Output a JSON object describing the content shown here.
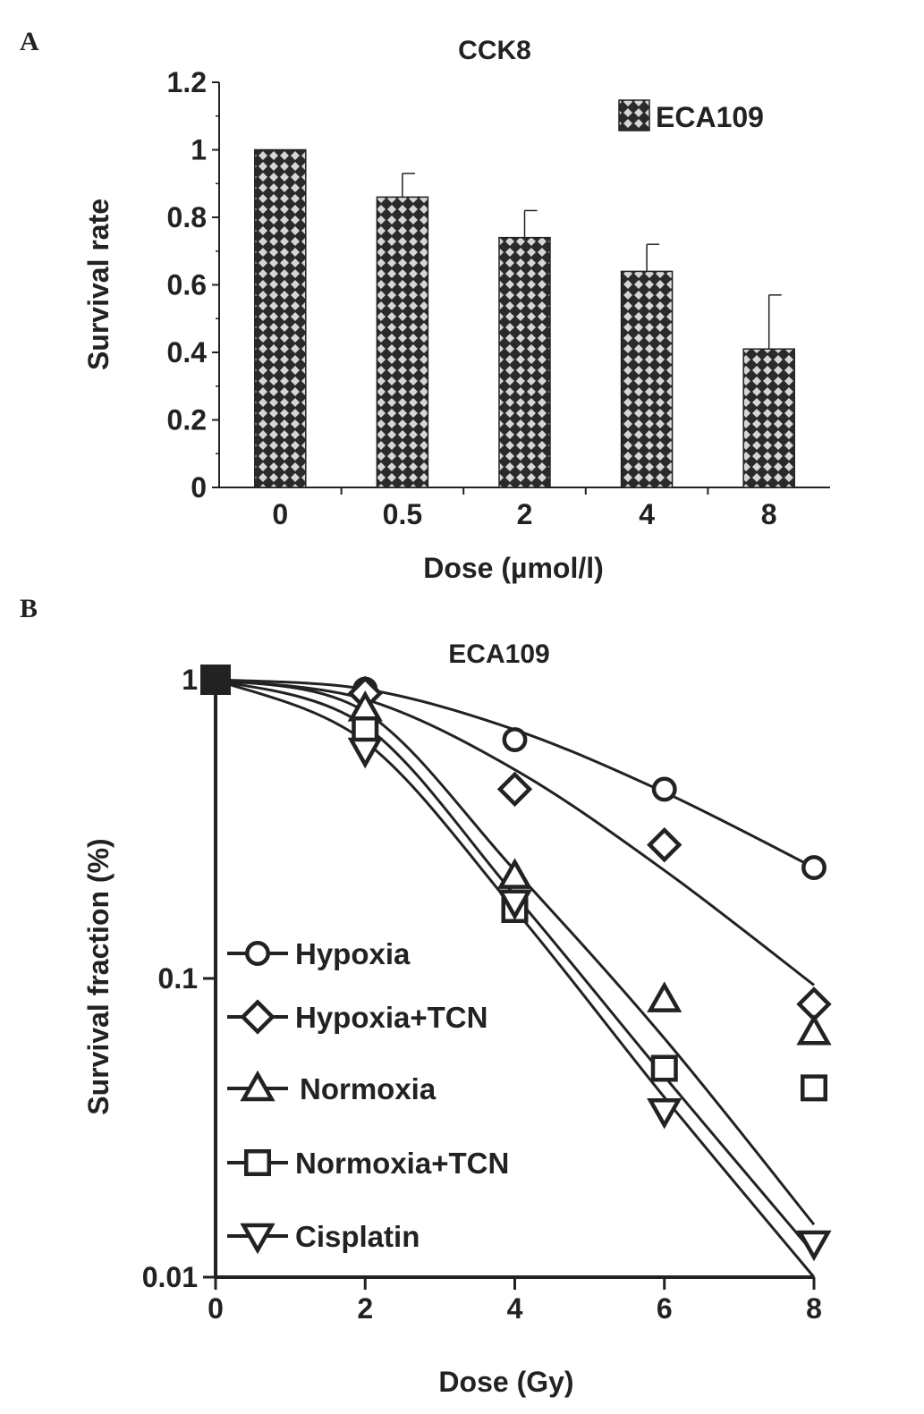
{
  "chart_data": [
    {
      "panel_label": "A",
      "type": "bar",
      "title": "CCK8",
      "xlabel": "Dose (µmol/l)",
      "ylabel": "Survival rate",
      "categories": [
        "0",
        "0.5",
        "2",
        "4",
        "8"
      ],
      "series": [
        {
          "name": "ECA109",
          "values": [
            1.0,
            0.86,
            0.74,
            0.64,
            0.41
          ],
          "errors": [
            0.0,
            0.07,
            0.08,
            0.08,
            0.16
          ]
        }
      ],
      "ylim": [
        0,
        1.2
      ],
      "yticks": [
        "0",
        "0.2",
        "0.4",
        "0.6",
        "0.8",
        "1",
        "1.2"
      ],
      "legend_position": "top-right",
      "grid": false
    },
    {
      "panel_label": "B",
      "type": "scatter",
      "title": "ECA109",
      "xlabel": "Dose (Gy)",
      "ylabel": "Survival fraction (%)",
      "y_scale": "log",
      "xlim": [
        0,
        8
      ],
      "ylim": [
        0.01,
        1
      ],
      "xticks": [
        "0",
        "2",
        "4",
        "6",
        "8"
      ],
      "yticks": [
        "0.01",
        "0.1",
        "1"
      ],
      "x": [
        0,
        2,
        4,
        6,
        8
      ],
      "series": [
        {
          "name": "Hypoxia",
          "marker": "circle",
          "values": [
            1.0,
            0.93,
            0.63,
            0.43,
            0.235
          ],
          "fit": [
            1.0,
            0.93,
            0.68,
            0.42,
            0.235
          ]
        },
        {
          "name": "Hypoxia+TCN",
          "marker": "diamond",
          "values": [
            1.0,
            0.9,
            0.43,
            0.28,
            0.082
          ],
          "fit": [
            1.0,
            0.86,
            0.5,
            0.23,
            0.095
          ]
        },
        {
          "name": "Normoxia",
          "marker": "triangle-up",
          "values": [
            1.0,
            0.8,
            0.22,
            0.085,
            0.066
          ],
          "fit": [
            1.0,
            0.78,
            0.23,
            0.063,
            0.015
          ]
        },
        {
          "name": "Normoxia+TCN",
          "marker": "square",
          "values": [
            1.0,
            0.68,
            0.17,
            0.05,
            0.043
          ],
          "fit": [
            1.0,
            0.7,
            0.19,
            0.047,
            0.012
          ]
        },
        {
          "name": "Cisplatin",
          "marker": "triangle-down",
          "values": [
            1.0,
            0.58,
            0.18,
            0.036,
            0.013
          ],
          "fit": [
            1.0,
            0.62,
            0.17,
            0.04,
            0.01
          ]
        }
      ],
      "legend_position": "center-left",
      "grid": false
    }
  ]
}
